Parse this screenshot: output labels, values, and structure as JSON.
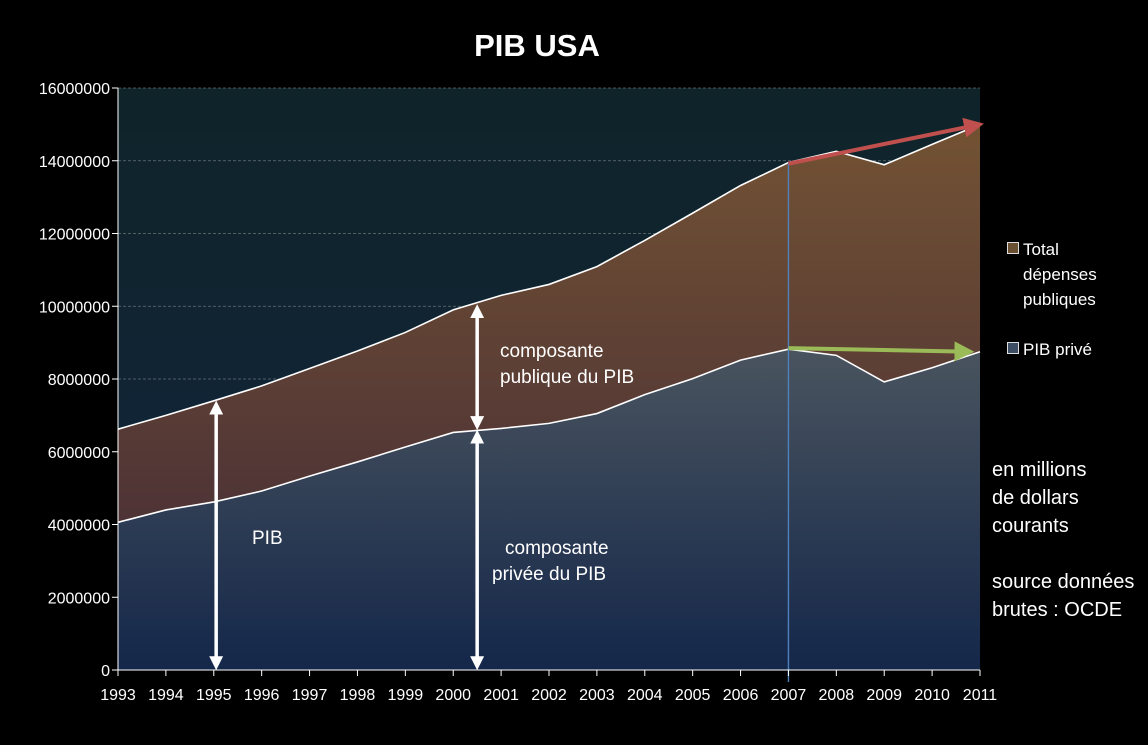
{
  "chart_data": {
    "type": "area",
    "title": "PIB USA",
    "x": [
      1993,
      1994,
      1995,
      1996,
      1997,
      1998,
      1999,
      2000,
      2001,
      2002,
      2003,
      2004,
      2005,
      2006,
      2007,
      2008,
      2009,
      2010,
      2011
    ],
    "ylim": [
      0,
      16000000
    ],
    "yticks": [
      0,
      2000000,
      4000000,
      6000000,
      8000000,
      10000000,
      12000000,
      14000000,
      16000000
    ],
    "grid": true,
    "legend_position": "right",
    "stacked": true,
    "series": [
      {
        "name": "PIB privé",
        "values": [
          4060000,
          4400000,
          4620000,
          4920000,
          5330000,
          5720000,
          6130000,
          6530000,
          6640000,
          6780000,
          7050000,
          7570000,
          8010000,
          8520000,
          8820000,
          8650000,
          7920000,
          8310000,
          8750000
        ],
        "color": "#3d4d63"
      },
      {
        "name": "Total dépenses publiques",
        "values": [
          2560000,
          2600000,
          2780000,
          2890000,
          2960000,
          3050000,
          3150000,
          3370000,
          3660000,
          3820000,
          4040000,
          4240000,
          4550000,
          4800000,
          5130000,
          5610000,
          5970000,
          6140000,
          6250000
        ],
        "color": "#6b4f33"
      }
    ],
    "totals": [
      6620000,
      7000000,
      7400000,
      7810000,
      8290000,
      8770000,
      9280000,
      9900000,
      10300000,
      10600000,
      11090000,
      11810000,
      12560000,
      13320000,
      13950000,
      14260000,
      13890000,
      14450000,
      15000000
    ],
    "marker_year": 2007,
    "annotations": {
      "pib": "PIB",
      "public": [
        "composante",
        "publique du PIB"
      ],
      "private": [
        "composante",
        "privée du PIB"
      ]
    },
    "trend_arrows": {
      "total": {
        "from": [
          2007,
          13920000
        ],
        "to": [
          2011,
          15000000
        ],
        "color": "#c0504d"
      },
      "private": {
        "from": [
          2007,
          8850000
        ],
        "to": [
          2010.8,
          8750000
        ],
        "color": "#9bbb59"
      }
    },
    "vertical_arrows": [
      {
        "year": 1995.05,
        "from": 0,
        "to": 7400000
      },
      {
        "year": 2000.5,
        "from": 0,
        "to": 6600000
      },
      {
        "year": 2000.5,
        "from": 6600000,
        "to": 10050000
      }
    ]
  },
  "legend": {
    "items": [
      {
        "label": [
          "Total",
          "dépenses",
          "publiques"
        ],
        "color": "#6b4f33"
      },
      {
        "label": [
          "PIB privé"
        ],
        "color": "#3d4d63"
      }
    ]
  },
  "note": {
    "units": [
      "en  millions",
      "de dollars",
      "courants"
    ],
    "source": [
      "source données",
      "brutes : OCDE"
    ]
  }
}
